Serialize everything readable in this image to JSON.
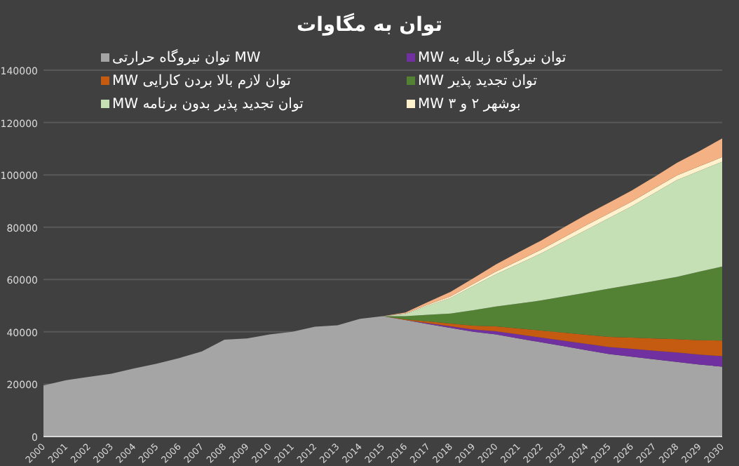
{
  "chart_data": {
    "type": "area",
    "stacked": true,
    "title": "توان به مگاوات",
    "categories": [
      "2000",
      "2001",
      "2002",
      "2003",
      "2004",
      "2005",
      "2006",
      "2007",
      "2008",
      "2009",
      "2010",
      "2011",
      "2012",
      "2013",
      "2014",
      "2015",
      "2016",
      "2017",
      "2018",
      "2019",
      "2020",
      "2021",
      "2022",
      "2023",
      "2024",
      "2025",
      "2026",
      "2027",
      "2028",
      "2029",
      "2030"
    ],
    "series": [
      {
        "name": "MW توان  نیروگاه حرارتی",
        "color": "#a5a5a5",
        "values": [
          19500,
          21500,
          22800,
          24000,
          26000,
          27800,
          30000,
          32500,
          37000,
          37500,
          39000,
          40000,
          42000,
          42500,
          45000,
          46000,
          44500,
          43000,
          41500,
          40000,
          39000,
          37500,
          36000,
          34500,
          33000,
          31500,
          30500,
          29500,
          28500,
          27500,
          26700
        ]
      },
      {
        "name": "توان نیروگاه زباله به MW",
        "color": "#7030a0",
        "values": [
          null,
          null,
          null,
          null,
          null,
          null,
          null,
          null,
          null,
          null,
          null,
          null,
          null,
          null,
          null,
          0,
          0,
          300,
          600,
          900,
          1200,
          1500,
          1800,
          2100,
          2400,
          2700,
          3000,
          3300,
          3600,
          3800,
          4000
        ]
      },
      {
        "name": "توان لازم بالا بردن کارایی MW",
        "color": "#c55a11",
        "values": [
          null,
          null,
          null,
          null,
          null,
          null,
          null,
          null,
          null,
          null,
          null,
          null,
          null,
          null,
          null,
          0,
          300,
          700,
          1100,
          1500,
          1900,
          2300,
          2700,
          3100,
          3500,
          3900,
          4300,
          4700,
          5100,
          5500,
          6000
        ]
      },
      {
        "name": "توان تجدید پذیر MW",
        "color": "#548235",
        "values": [
          null,
          null,
          null,
          null,
          null,
          null,
          null,
          null,
          null,
          null,
          null,
          null,
          null,
          null,
          null,
          0,
          1200,
          2500,
          3800,
          5900,
          7600,
          9500,
          11500,
          13800,
          16100,
          18400,
          20200,
          22000,
          23800,
          26200,
          28300
        ]
      },
      {
        "name": "توان تجدید پذیر بدون برنامه MW",
        "color": "#c5e0b4",
        "values": [
          null,
          null,
          null,
          null,
          null,
          null,
          null,
          null,
          null,
          null,
          null,
          null,
          null,
          null,
          null,
          0,
          800,
          3500,
          6000,
          9200,
          12300,
          15200,
          18000,
          21000,
          24000,
          27000,
          30000,
          33500,
          37000,
          38500,
          40000
        ]
      },
      {
        "name": "بوشهر ۲ و ۳ MW",
        "color": "#fff2cc",
        "values": [
          null,
          null,
          null,
          null,
          null,
          null,
          null,
          null,
          null,
          null,
          null,
          null,
          null,
          null,
          null,
          0,
          200,
          400,
          600,
          800,
          1000,
          1200,
          1400,
          1600,
          1800,
          1800,
          1800,
          1800,
          1800,
          1800,
          1800
        ]
      },
      {
        "color": "#f4b183",
        "values": [
          null,
          null,
          null,
          null,
          null,
          null,
          null,
          null,
          null,
          null,
          null,
          null,
          null,
          null,
          null,
          0,
          400,
          1000,
          1700,
          2200,
          2800,
          3200,
          3500,
          3800,
          4000,
          4100,
          4200,
          4400,
          4800,
          5800,
          7100
        ]
      }
    ],
    "ylim": [
      0,
      140000
    ],
    "yticks": [
      0,
      20000,
      40000,
      60000,
      80000,
      100000,
      120000,
      140000
    ],
    "grid": "y",
    "legend": "top"
  }
}
